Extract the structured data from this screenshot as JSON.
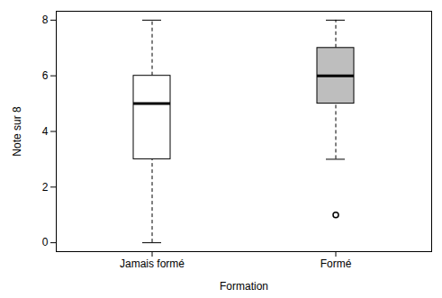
{
  "chart_data": {
    "type": "box",
    "x_label": "Formation",
    "y_label": "Note sur 8",
    "categories": [
      "Jamais formé",
      "Formé"
    ],
    "min": [
      0,
      3
    ],
    "q1": [
      3,
      5
    ],
    "median": [
      5,
      6
    ],
    "q3": [
      6,
      7
    ],
    "max": [
      8,
      8
    ],
    "outliers": [
      [],
      [
        1
      ]
    ],
    "colors": [
      "#ffffff",
      "#bebebe"
    ],
    "ylim": [
      -0.32,
      8.32
    ],
    "yticks": [
      0,
      2,
      4,
      6,
      8
    ]
  }
}
